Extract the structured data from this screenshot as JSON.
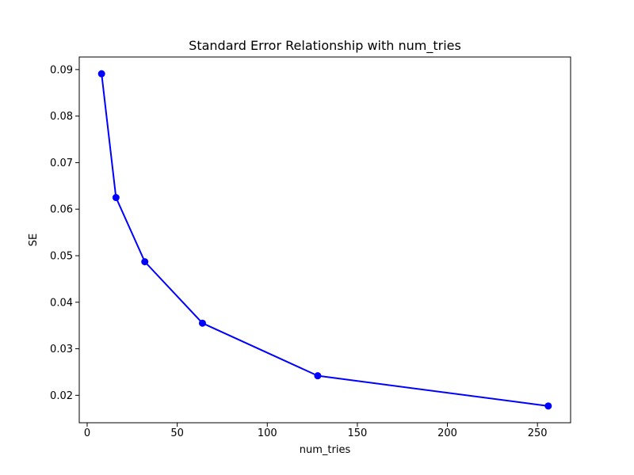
{
  "figure": {
    "background_color": "#ffffff"
  },
  "chart_data": {
    "type": "line",
    "title": "Standard Error Relationship with num_tries",
    "xlabel": "num_tries",
    "ylabel": "SE",
    "x": [
      8,
      16,
      32,
      64,
      128,
      256
    ],
    "y": [
      0.0891,
      0.0625,
      0.0487,
      0.0355,
      0.0242,
      0.0177
    ],
    "xticks": [
      0,
      50,
      100,
      150,
      200,
      250
    ],
    "xtick_labels": [
      "0",
      "50",
      "100",
      "150",
      "200",
      "250"
    ],
    "yticks": [
      0.02,
      0.03,
      0.04,
      0.05,
      0.06,
      0.07,
      0.08,
      0.09
    ],
    "ytick_labels": [
      "0.02",
      "0.03",
      "0.04",
      "0.05",
      "0.06",
      "0.07",
      "0.08",
      "0.09"
    ],
    "xlim": [
      -4.4,
      268.4
    ],
    "ylim": [
      0.0141,
      0.0927
    ],
    "line_color": "#0000ff",
    "marker": "circle",
    "marker_color": "#0000ff",
    "spine_color": "#000000",
    "text_color": "#000000",
    "grid": false,
    "legend": false
  }
}
